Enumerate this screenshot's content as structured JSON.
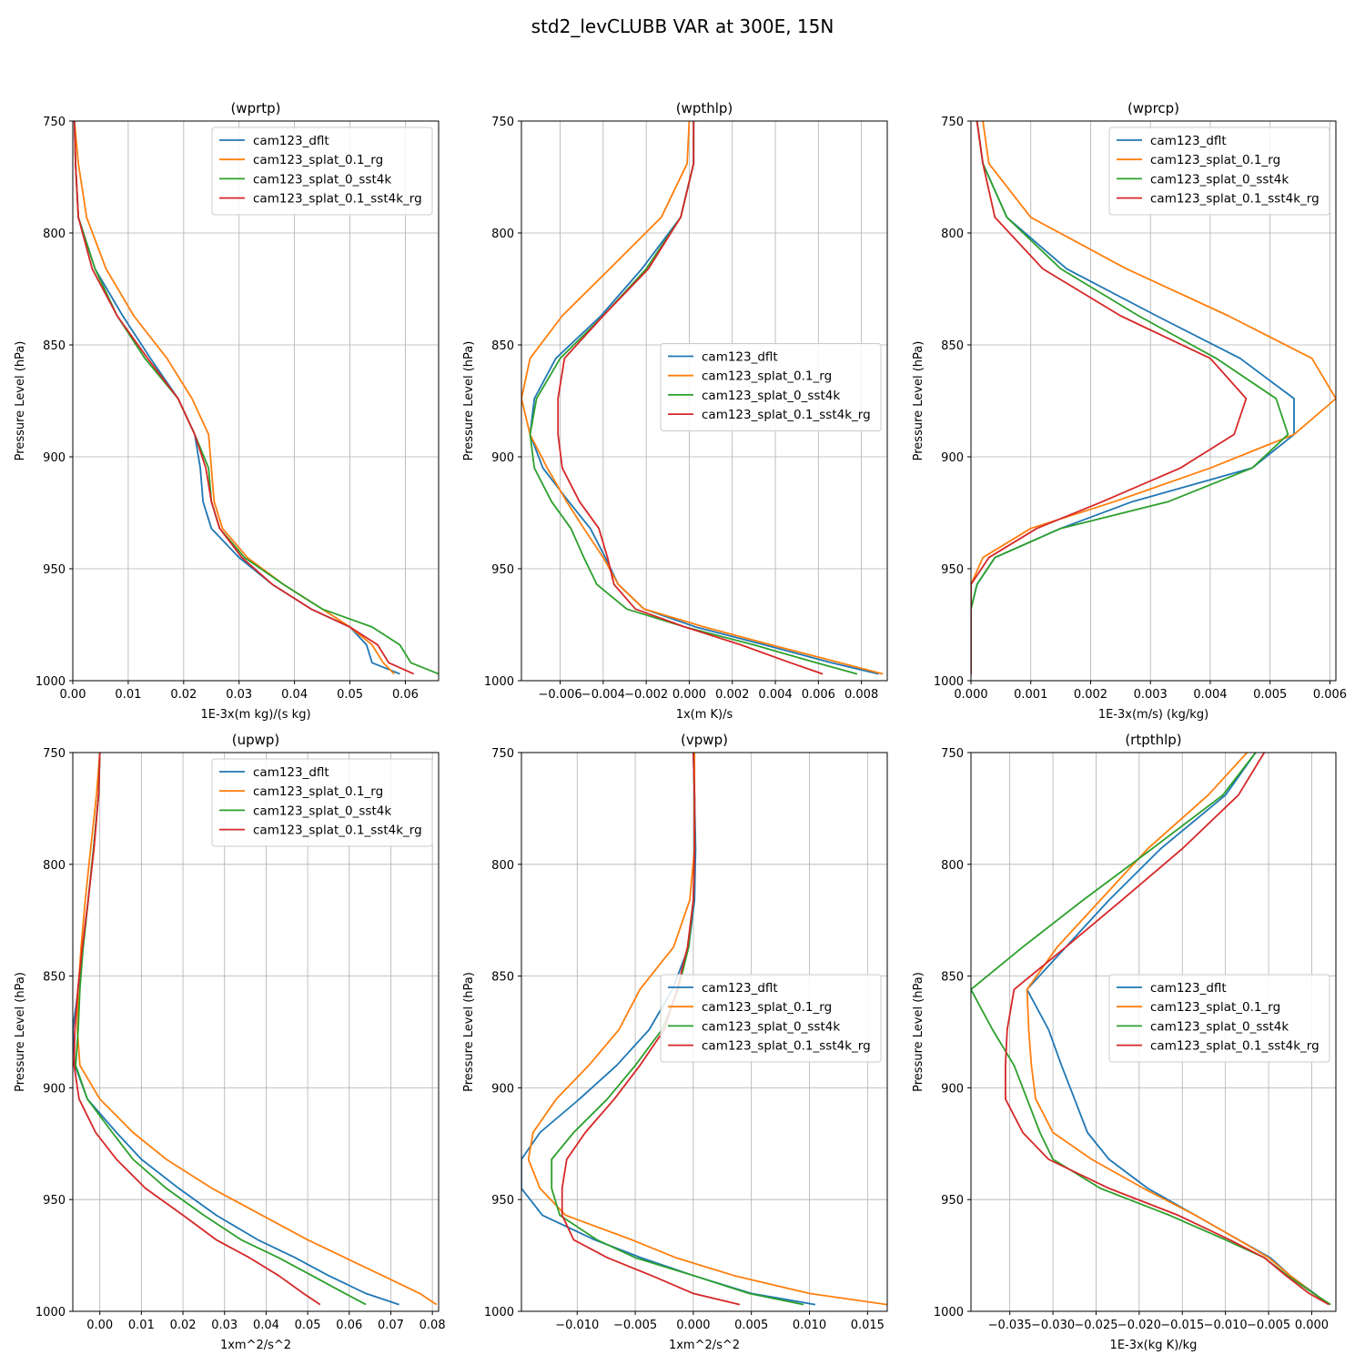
{
  "figure": {
    "title": "std2_levCLUBB VAR at 300E, 15N"
  },
  "series_names": [
    "cam123_dflt",
    "cam123_splat_0.1_rg",
    "cam123_splat_0_sst4k",
    "cam123_splat_0.1_sst4k_rg"
  ],
  "series_colors": [
    "#1f77b4",
    "#ff7f0e",
    "#2ca02c",
    "#d62728"
  ],
  "chart_data": [
    {
      "type": "line",
      "title": "(wprtp)",
      "xlabel": "1E-3x(m kg)/(s kg)",
      "ylabel": "Pressure Level (hPa)",
      "xlim": [
        0.0,
        0.066
      ],
      "ylim": [
        1000,
        750
      ],
      "xticks": [
        0.0,
        0.01,
        0.02,
        0.03,
        0.04,
        0.05,
        0.06
      ],
      "xtick_labels": [
        "0.00",
        "0.01",
        "0.02",
        "0.03",
        "0.04",
        "0.05",
        "0.06"
      ],
      "yticks": [
        750,
        800,
        850,
        900,
        950,
        1000
      ],
      "legend": "upper right",
      "levels": [
        750,
        769,
        793,
        816,
        837,
        856,
        874,
        890,
        905,
        920,
        932,
        945,
        957,
        968,
        976,
        984,
        992,
        997
      ],
      "series": [
        {
          "name": "cam123_dflt",
          "values": [
            0.0003,
            0.0005,
            0.001,
            0.004,
            0.009,
            0.014,
            0.019,
            0.022,
            0.023,
            0.0235,
            0.025,
            0.03,
            0.036,
            0.043,
            0.05,
            0.053,
            0.054,
            0.059
          ]
        },
        {
          "name": "cam123_splat_0.1_rg",
          "values": [
            0.0003,
            0.001,
            0.0025,
            0.006,
            0.011,
            0.017,
            0.0215,
            0.0245,
            0.025,
            0.0255,
            0.027,
            0.0315,
            0.038,
            0.045,
            0.05,
            0.054,
            0.056,
            0.058
          ]
        },
        {
          "name": "cam123_splat_0_sst4k",
          "values": [
            0.0003,
            0.0005,
            0.001,
            0.004,
            0.008,
            0.013,
            0.019,
            0.022,
            0.0245,
            0.025,
            0.0265,
            0.031,
            0.038,
            0.045,
            0.054,
            0.059,
            0.061,
            0.066
          ]
        },
        {
          "name": "cam123_splat_0.1_sst4k_rg",
          "values": [
            0.0003,
            0.0005,
            0.001,
            0.0035,
            0.008,
            0.0135,
            0.019,
            0.022,
            0.024,
            0.025,
            0.0265,
            0.0305,
            0.036,
            0.043,
            0.05,
            0.055,
            0.057,
            0.0615
          ]
        }
      ]
    },
    {
      "type": "line",
      "title": "(wpthlp)",
      "xlabel": "1x(m K)/s",
      "ylabel": "Pressure Level (hPa)",
      "xlim": [
        -0.0078,
        0.0092
      ],
      "ylim": [
        1000,
        750
      ],
      "xticks": [
        -0.006,
        -0.004,
        -0.002,
        0.0,
        0.002,
        0.004,
        0.006,
        0.008
      ],
      "xtick_labels": [
        "−0.006",
        "−0.004",
        "−0.002",
        "0.000",
        "0.002",
        "0.004",
        "0.006",
        "0.008"
      ],
      "yticks": [
        750,
        800,
        850,
        900,
        950,
        1000
      ],
      "legend": "center right",
      "levels": [
        750,
        769,
        793,
        816,
        837,
        856,
        874,
        890,
        905,
        920,
        932,
        945,
        957,
        968,
        976,
        984,
        992,
        997
      ],
      "series": [
        {
          "name": "cam123_dflt",
          "values": [
            0.0002,
            0.0002,
            -0.0004,
            -0.0022,
            -0.0041,
            -0.0062,
            -0.0072,
            -0.0074,
            -0.0068,
            -0.0056,
            -0.0046,
            -0.0039,
            -0.0033,
            -0.0021,
            0.0003,
            0.0035,
            0.0066,
            0.0088
          ]
        },
        {
          "name": "cam123_splat_0.1_rg",
          "values": [
            0.0,
            -0.0001,
            -0.0013,
            -0.0037,
            -0.0059,
            -0.0074,
            -0.0078,
            -0.0074,
            -0.0066,
            -0.0057,
            -0.0049,
            -0.004,
            -0.0033,
            -0.0021,
            0.0007,
            0.0038,
            0.007,
            0.009
          ]
        },
        {
          "name": "cam123_splat_0_sst4k",
          "values": [
            0.0002,
            0.0002,
            -0.0004,
            -0.002,
            -0.004,
            -0.006,
            -0.0071,
            -0.0074,
            -0.0072,
            -0.0064,
            -0.0055,
            -0.0049,
            -0.0043,
            -0.0029,
            -0.0002,
            0.003,
            0.0059,
            0.0078
          ]
        },
        {
          "name": "cam123_splat_0.1_sst4k_rg",
          "values": [
            0.0002,
            0.0002,
            -0.0004,
            -0.0019,
            -0.004,
            -0.0058,
            -0.0061,
            -0.0061,
            -0.0059,
            -0.0051,
            -0.0042,
            -0.0038,
            -0.0035,
            -0.0025,
            -0.0002,
            0.0024,
            0.0047,
            0.0062
          ]
        }
      ]
    },
    {
      "type": "line",
      "title": "(wprcp)",
      "xlabel": "1E-3x(m/s) (kg/kg)",
      "ylabel": "Pressure Level (hPa)",
      "xlim": [
        0.0,
        0.0061
      ],
      "ylim": [
        1000,
        750
      ],
      "xticks": [
        0.0,
        0.001,
        0.002,
        0.003,
        0.004,
        0.005,
        0.006
      ],
      "xtick_labels": [
        "0.000",
        "0.001",
        "0.002",
        "0.003",
        "0.004",
        "0.005",
        "0.006"
      ],
      "yticks": [
        750,
        800,
        850,
        900,
        950,
        1000
      ],
      "legend": "upper right",
      "levels": [
        750,
        769,
        793,
        816,
        837,
        856,
        874,
        890,
        905,
        920,
        932,
        945,
        957,
        968,
        976,
        984,
        992,
        997
      ],
      "series": [
        {
          "name": "cam123_dflt",
          "values": [
            0.0001,
            0.0002,
            0.0006,
            0.0016,
            0.0031,
            0.0045,
            0.0054,
            0.0054,
            0.0047,
            0.0027,
            0.0015,
            0.0004,
            0.0001,
            0.0,
            0.0,
            0.0,
            0.0,
            0.0
          ]
        },
        {
          "name": "cam123_splat_0.1_rg",
          "values": [
            0.0002,
            0.0003,
            0.001,
            0.0026,
            0.0043,
            0.0057,
            0.0061,
            0.0054,
            0.004,
            0.0024,
            0.001,
            0.0002,
            0.0,
            0.0,
            0.0,
            0.0,
            0.0,
            0.0
          ]
        },
        {
          "name": "cam123_splat_0_sst4k",
          "values": [
            0.0001,
            0.0002,
            0.0006,
            0.0015,
            0.0028,
            0.0041,
            0.0051,
            0.0053,
            0.0047,
            0.0033,
            0.0015,
            0.0004,
            0.0001,
            0.0,
            0.0,
            0.0,
            0.0,
            0.0
          ]
        },
        {
          "name": "cam123_splat_0.1_sst4k_rg",
          "values": [
            0.0001,
            0.0002,
            0.0004,
            0.0012,
            0.0025,
            0.004,
            0.0046,
            0.0044,
            0.0035,
            0.0022,
            0.0011,
            0.0003,
            0.0,
            0.0,
            0.0,
            0.0,
            0.0,
            0.0
          ]
        }
      ]
    },
    {
      "type": "line",
      "title": "(upwp)",
      "xlabel": "1xm^2/s^2",
      "ylabel": "Pressure Level (hPa)",
      "xlim": [
        -0.0065,
        0.0815
      ],
      "ylim": [
        1000,
        750
      ],
      "xticks": [
        0.0,
        0.01,
        0.02,
        0.03,
        0.04,
        0.05,
        0.06,
        0.07,
        0.08
      ],
      "xtick_labels": [
        "0.00",
        "0.01",
        "0.02",
        "0.03",
        "0.04",
        "0.05",
        "0.06",
        "0.07",
        "0.08"
      ],
      "yticks": [
        750,
        800,
        850,
        900,
        950,
        1000
      ],
      "legend": "upper right",
      "levels": [
        750,
        769,
        793,
        816,
        837,
        856,
        874,
        890,
        905,
        920,
        932,
        945,
        957,
        968,
        976,
        984,
        992,
        997
      ],
      "series": [
        {
          "name": "cam123_dflt",
          "values": [
            0.0,
            -0.0003,
            -0.0015,
            -0.0028,
            -0.004,
            -0.0052,
            -0.0065,
            -0.006,
            -0.003,
            0.004,
            0.01,
            0.019,
            0.028,
            0.038,
            0.047,
            0.055,
            0.064,
            0.072
          ]
        },
        {
          "name": "cam123_splat_0.1_rg",
          "values": [
            0.0,
            -0.0008,
            -0.0022,
            -0.0035,
            -0.0045,
            -0.0052,
            -0.0054,
            -0.0048,
            0.0,
            0.008,
            0.016,
            0.027,
            0.039,
            0.05,
            0.059,
            0.068,
            0.077,
            0.081
          ]
        },
        {
          "name": "cam123_splat_0_sst4k",
          "values": [
            0.0,
            -0.0003,
            -0.0015,
            -0.0028,
            -0.004,
            -0.0048,
            -0.0052,
            -0.0058,
            -0.003,
            0.003,
            0.008,
            0.016,
            0.025,
            0.034,
            0.043,
            0.051,
            0.059,
            0.064
          ]
        },
        {
          "name": "cam123_splat_0.1_sst4k_rg",
          "values": [
            0.0,
            -0.0003,
            -0.0014,
            -0.0028,
            -0.0042,
            -0.0053,
            -0.006,
            -0.0062,
            -0.005,
            -0.001,
            0.004,
            0.011,
            0.02,
            0.028,
            0.036,
            0.043,
            0.049,
            0.053
          ]
        }
      ]
    },
    {
      "type": "line",
      "title": "(vpwp)",
      "xlabel": "1xm^2/s^2",
      "ylabel": "Pressure Level (hPa)",
      "xlim": [
        -0.0148,
        0.0167
      ],
      "ylim": [
        1000,
        750
      ],
      "xticks": [
        -0.01,
        -0.005,
        0.0,
        0.005,
        0.01,
        0.015
      ],
      "xtick_labels": [
        "−0.010",
        "−0.005",
        "0.000",
        "0.005",
        "0.010",
        "0.015"
      ],
      "yticks": [
        750,
        800,
        850,
        900,
        950,
        1000
      ],
      "legend": "center right",
      "levels": [
        750,
        769,
        793,
        816,
        837,
        856,
        874,
        890,
        905,
        920,
        932,
        945,
        957,
        968,
        976,
        984,
        992,
        997
      ],
      "series": [
        {
          "name": "cam123_dflt",
          "values": [
            0.0,
            0.0001,
            0.0002,
            0.0001,
            -0.0004,
            -0.0018,
            -0.0038,
            -0.0066,
            -0.0098,
            -0.0132,
            -0.0148,
            -0.0148,
            -0.013,
            -0.0085,
            -0.0045,
            0.0,
            0.005,
            0.0105
          ]
        },
        {
          "name": "cam123_splat_0.1_rg",
          "values": [
            0.0001,
            0.0001,
            0.0001,
            -0.0003,
            -0.0017,
            -0.0046,
            -0.0064,
            -0.009,
            -0.0118,
            -0.0138,
            -0.0142,
            -0.0132,
            -0.011,
            -0.0053,
            -0.0015,
            0.0035,
            0.01,
            0.0167
          ]
        },
        {
          "name": "cam123_splat_0_sst4k",
          "values": [
            0.0,
            0.0001,
            0.0001,
            0.0,
            -0.0004,
            -0.0013,
            -0.0027,
            -0.005,
            -0.0074,
            -0.0103,
            -0.0122,
            -0.0122,
            -0.0115,
            -0.0083,
            -0.005,
            0.0,
            0.0048,
            0.0095
          ]
        },
        {
          "name": "cam123_splat_0.1_sst4k_rg",
          "values": [
            0.0,
            0.0001,
            0.0001,
            0.0,
            -0.0005,
            -0.0014,
            -0.0025,
            -0.0046,
            -0.0068,
            -0.0093,
            -0.0109,
            -0.0113,
            -0.0113,
            -0.0103,
            -0.0074,
            -0.0036,
            0.0,
            0.004
          ]
        }
      ]
    },
    {
      "type": "line",
      "title": "(rtpthlp)",
      "xlabel": "1E-3x(kg K)/kg",
      "ylabel": "Pressure Level (hPa)",
      "xlim": [
        -0.0395,
        0.0028
      ],
      "ylim": [
        1000,
        750
      ],
      "xticks": [
        -0.035,
        -0.03,
        -0.025,
        -0.02,
        -0.015,
        -0.01,
        -0.005,
        0.0
      ],
      "xtick_labels": [
        "−0.035",
        "−0.030",
        "−0.025",
        "−0.020",
        "−0.015",
        "−0.010",
        "−0.005",
        "0.000"
      ],
      "yticks": [
        750,
        800,
        850,
        900,
        950,
        1000
      ],
      "legend": "center right",
      "levels": [
        750,
        769,
        793,
        816,
        837,
        856,
        874,
        890,
        905,
        920,
        932,
        945,
        957,
        968,
        976,
        984,
        992,
        997
      ],
      "series": [
        {
          "name": "cam123_dflt",
          "values": [
            -0.0065,
            -0.01,
            -0.0175,
            -0.0235,
            -0.0285,
            -0.033,
            -0.0305,
            -0.029,
            -0.0275,
            -0.026,
            -0.0235,
            -0.019,
            -0.0135,
            -0.0085,
            -0.0048,
            -0.0025,
            0.0003,
            0.002
          ]
        },
        {
          "name": "cam123_splat_0.1_rg",
          "values": [
            -0.0075,
            -0.012,
            -0.019,
            -0.0245,
            -0.0295,
            -0.033,
            -0.0328,
            -0.0325,
            -0.032,
            -0.03,
            -0.0255,
            -0.0195,
            -0.0135,
            -0.0085,
            -0.005,
            -0.0025,
            0.0002,
            0.002
          ]
        },
        {
          "name": "cam123_splat_0_sst4k",
          "values": [
            -0.0065,
            -0.0103,
            -0.0185,
            -0.0265,
            -0.0335,
            -0.0395,
            -0.037,
            -0.0345,
            -0.033,
            -0.0315,
            -0.03,
            -0.0245,
            -0.0165,
            -0.01,
            -0.0055,
            -0.0028,
            0.0002,
            0.0022
          ]
        },
        {
          "name": "cam123_splat_0.1_sst4k_rg",
          "values": [
            -0.0055,
            -0.0085,
            -0.015,
            -0.022,
            -0.0285,
            -0.0345,
            -0.0353,
            -0.0355,
            -0.0355,
            -0.0335,
            -0.0305,
            -0.0235,
            -0.0155,
            -0.0095,
            -0.0055,
            -0.003,
            -0.0003,
            0.002
          ]
        }
      ]
    }
  ]
}
